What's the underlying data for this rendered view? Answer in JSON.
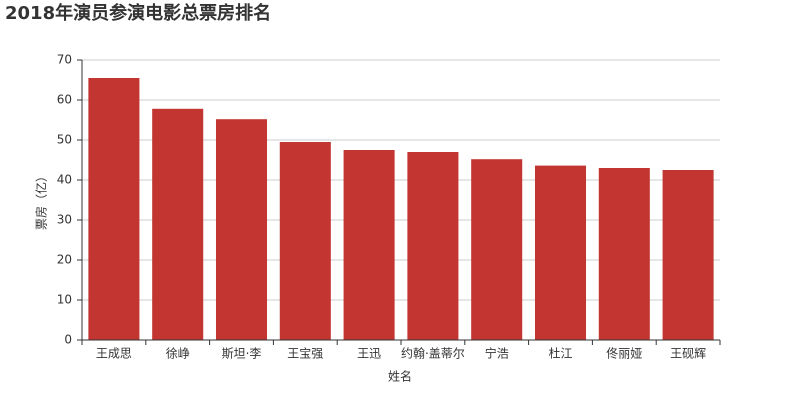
{
  "chart_data": {
    "type": "bar",
    "title": "2018年演员参演电影总票房排名",
    "x_label": "姓名",
    "y_label": "票房（亿）",
    "categories": [
      "王成思",
      "徐峥",
      "斯坦·李",
      "王宝强",
      "王迅",
      "约翰·盖蒂尔",
      "宁浩",
      "杜江",
      "佟丽娅",
      "王砚辉"
    ],
    "values": [
      65.5,
      57.8,
      55.2,
      49.5,
      47.5,
      47.0,
      45.2,
      43.6,
      43.0,
      42.5
    ],
    "color": "#c23531",
    "ylim": [
      0,
      70
    ],
    "yticks": [
      0,
      10,
      20,
      30,
      40,
      50,
      60,
      70
    ],
    "grid": true
  }
}
